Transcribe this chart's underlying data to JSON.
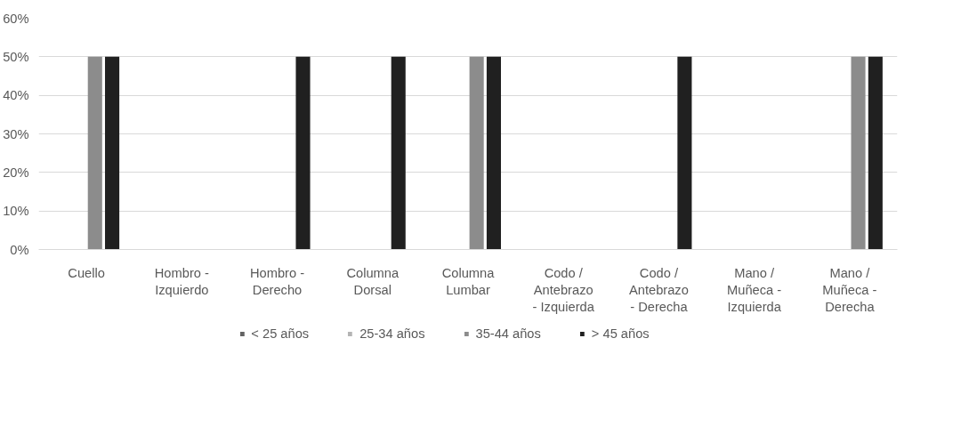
{
  "chart_data": {
    "type": "bar",
    "categories": [
      "Cuello",
      "Hombro -\nIzquierdo",
      "Hombro -\nDerecho",
      "Columna\nDorsal",
      "Columna\nLumbar",
      "Codo /\nAntebrazo\n- Izquierda",
      "Codo /\nAntebrazo\n- Derecha",
      "Mano /\nMuñeca -\nIzquierda",
      "Mano /\nMuñeca -\nDerecha"
    ],
    "series": [
      {
        "name": "< 25 años",
        "color": "#636363",
        "values": [
          0,
          0,
          0,
          0,
          0,
          0,
          0,
          0,
          0
        ]
      },
      {
        "name": "25-34 años",
        "color": "#b4b4b4",
        "values": [
          0,
          0,
          0,
          0,
          0,
          0,
          0,
          0,
          0
        ]
      },
      {
        "name": "35-44 años",
        "color": "#8c8c8c",
        "values": [
          50,
          0,
          0,
          0,
          50,
          0,
          0,
          0,
          50
        ]
      },
      {
        "name": "> 45 años",
        "color": "#202020",
        "values": [
          50,
          0,
          50,
          50,
          50,
          0,
          50,
          0,
          50
        ]
      }
    ],
    "ylim": [
      0,
      60
    ],
    "yticks": [
      {
        "value": 0,
        "label": "0%"
      },
      {
        "value": 10,
        "label": "10%"
      },
      {
        "value": 20,
        "label": "20%"
      },
      {
        "value": 30,
        "label": "30%"
      },
      {
        "value": 40,
        "label": "40%"
      },
      {
        "value": 50,
        "label": "50%"
      },
      {
        "value": 60,
        "label": "60%"
      }
    ],
    "grid": "y",
    "legend": "bottom"
  }
}
